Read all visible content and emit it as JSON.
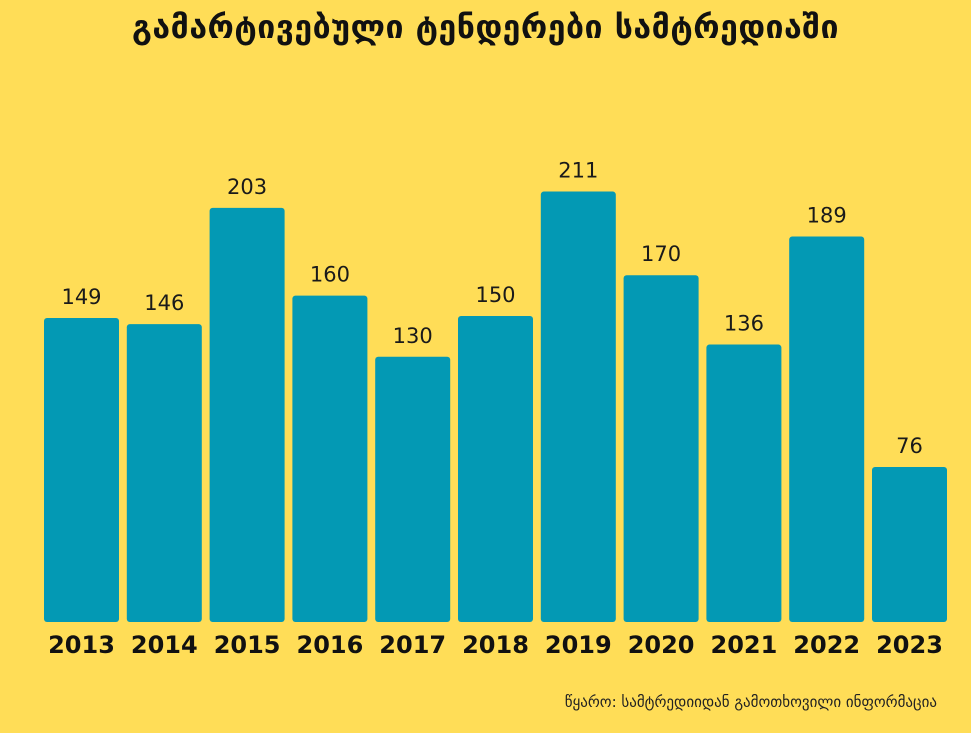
{
  "title": "გამარტივებული ტენდერები სამტრედიაში",
  "source": "წყარო: სამტრედიიდან გამოთხოვილი ინფორმაცია",
  "colors": {
    "background": "#FFDD57",
    "bar": "#0399B4",
    "text": "#111111"
  },
  "chart_data": {
    "type": "bar",
    "categories": [
      "2013",
      "2014",
      "2015",
      "2016",
      "2017",
      "2018",
      "2019",
      "2020",
      "2021",
      "2022",
      "2023"
    ],
    "values": [
      149,
      146,
      203,
      160,
      130,
      150,
      211,
      170,
      136,
      189,
      76
    ],
    "title": "გამარტივებული ტენდერები სამტრედიაში",
    "xlabel": "",
    "ylabel": "",
    "grid": false,
    "legend": "none"
  }
}
